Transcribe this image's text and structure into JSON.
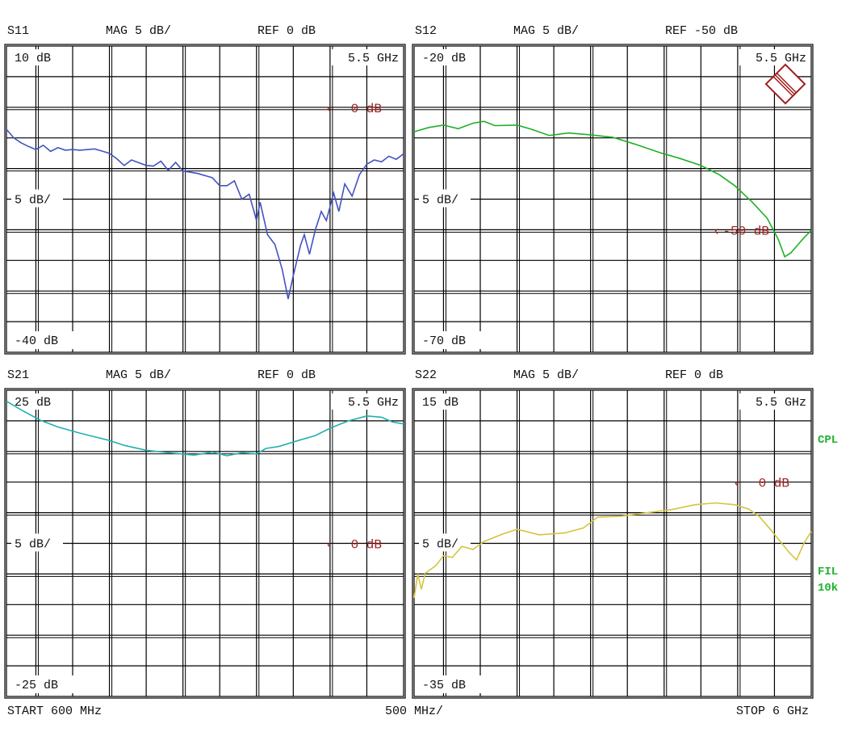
{
  "footer": {
    "start": "START  600 MHz",
    "per_div": "500 MHz/",
    "stop": "STOP 6 GHz"
  },
  "side_labels": {
    "coupling": "CPL",
    "filter": "FIL",
    "filter_bw": "10k"
  },
  "logo": {
    "text": "R&S",
    "color": "#a02020"
  },
  "marker_color": "#a02020",
  "chart_data": [
    {
      "type": "line",
      "title": "S11",
      "format": "MAG 5 dB/",
      "ref_label": "REF 0 dB",
      "top_label": "10 dB",
      "bottom_label": "-40 dB",
      "scale_label": "5 dB/",
      "freq_label": "5.5 GHz",
      "marker": {
        "label": "0 dB",
        "value": 0
      },
      "xlabel": "",
      "ylabel": "",
      "xlim_ghz": [
        0.6,
        6.0
      ],
      "ylim": [
        -40,
        10
      ],
      "grid": true,
      "color": "#4353c2",
      "points": [
        [
          0.6,
          -3.6
        ],
        [
          0.7,
          -5.0
        ],
        [
          0.8,
          -5.8
        ],
        [
          0.9,
          -6.4
        ],
        [
          1.0,
          -6.9
        ],
        [
          1.1,
          -6.2
        ],
        [
          1.2,
          -7.2
        ],
        [
          1.3,
          -6.6
        ],
        [
          1.4,
          -7.0
        ],
        [
          1.5,
          -6.9
        ],
        [
          1.6,
          -7.0
        ],
        [
          1.8,
          -6.8
        ],
        [
          2.0,
          -7.5
        ],
        [
          2.1,
          -8.4
        ],
        [
          2.2,
          -9.5
        ],
        [
          2.3,
          -8.6
        ],
        [
          2.5,
          -9.5
        ],
        [
          2.6,
          -9.6
        ],
        [
          2.7,
          -8.8
        ],
        [
          2.8,
          -10.3
        ],
        [
          2.9,
          -9.0
        ],
        [
          3.0,
          -10.4
        ],
        [
          3.2,
          -10.8
        ],
        [
          3.4,
          -11.5
        ],
        [
          3.5,
          -12.8
        ],
        [
          3.6,
          -12.8
        ],
        [
          3.7,
          -12.0
        ],
        [
          3.8,
          -15.0
        ],
        [
          3.9,
          -14.2
        ],
        [
          4.0,
          -18.5
        ],
        [
          4.05,
          -15.5
        ],
        [
          4.15,
          -20.8
        ],
        [
          4.25,
          -22.4
        ],
        [
          4.35,
          -26.5
        ],
        [
          4.43,
          -31.3
        ],
        [
          4.5,
          -27.5
        ],
        [
          4.6,
          -22.5
        ],
        [
          4.65,
          -20.8
        ],
        [
          4.72,
          -24.0
        ],
        [
          4.8,
          -20.0
        ],
        [
          4.88,
          -17.0
        ],
        [
          4.95,
          -18.5
        ],
        [
          5.05,
          -14.0
        ],
        [
          5.12,
          -17.0
        ],
        [
          5.2,
          -12.5
        ],
        [
          5.3,
          -14.5
        ],
        [
          5.4,
          -11.0
        ],
        [
          5.5,
          -9.3
        ],
        [
          5.6,
          -8.6
        ],
        [
          5.7,
          -8.9
        ],
        [
          5.8,
          -8.0
        ],
        [
          5.9,
          -8.5
        ],
        [
          6.0,
          -7.6
        ]
      ]
    },
    {
      "type": "line",
      "title": "S12",
      "format": "MAG 5 dB/",
      "ref_label": "REF -50 dB",
      "top_label": "-20 dB",
      "bottom_label": "-70 dB",
      "scale_label": "5 dB/",
      "freq_label": "5.5 GHz",
      "marker": {
        "label": "-50 dB",
        "value": -50
      },
      "xlabel": "",
      "ylabel": "",
      "xlim_ghz": [
        0.6,
        6.0
      ],
      "ylim": [
        -70,
        -20
      ],
      "grid": true,
      "color": "#20b028",
      "points": [
        [
          0.6,
          -34.0
        ],
        [
          0.8,
          -33.3
        ],
        [
          1.0,
          -32.9
        ],
        [
          1.2,
          -33.5
        ],
        [
          1.4,
          -32.6
        ],
        [
          1.55,
          -32.3
        ],
        [
          1.7,
          -33.0
        ],
        [
          2.0,
          -32.9
        ],
        [
          2.2,
          -33.6
        ],
        [
          2.44,
          -34.6
        ],
        [
          2.7,
          -34.2
        ],
        [
          3.0,
          -34.5
        ],
        [
          3.3,
          -34.9
        ],
        [
          3.6,
          -36.0
        ],
        [
          3.97,
          -37.5
        ],
        [
          4.2,
          -38.3
        ],
        [
          4.5,
          -39.5
        ],
        [
          4.75,
          -41.0
        ],
        [
          4.96,
          -42.8
        ],
        [
          5.2,
          -45.5
        ],
        [
          5.4,
          -48.1
        ],
        [
          5.55,
          -51.5
        ],
        [
          5.64,
          -54.4
        ],
        [
          5.72,
          -53.8
        ],
        [
          5.8,
          -52.7
        ],
        [
          5.9,
          -51.3
        ],
        [
          6.0,
          -50.1
        ]
      ]
    },
    {
      "type": "line",
      "title": "S21",
      "format": "MAG 5 dB/",
      "ref_label": "REF 0 dB",
      "top_label": "25 dB",
      "bottom_label": "-25 dB",
      "scale_label": "5 dB/",
      "freq_label": "5.5 GHz",
      "marker": {
        "label": "0 dB",
        "value": 0
      },
      "xlabel": "",
      "ylabel": "",
      "xlim_ghz": [
        0.6,
        6.0
      ],
      "ylim": [
        -25,
        25
      ],
      "grid": true,
      "color": "#22b0b0",
      "points": [
        [
          0.6,
          23.2
        ],
        [
          0.8,
          21.8
        ],
        [
          1.06,
          20.1
        ],
        [
          1.3,
          19.0
        ],
        [
          1.6,
          18.0
        ],
        [
          2.0,
          16.8
        ],
        [
          2.2,
          16.0
        ],
        [
          2.5,
          15.2
        ],
        [
          2.8,
          14.8
        ],
        [
          3.15,
          14.4
        ],
        [
          3.4,
          14.9
        ],
        [
          3.6,
          14.3
        ],
        [
          3.8,
          14.8
        ],
        [
          4.0,
          14.6
        ],
        [
          4.13,
          15.5
        ],
        [
          4.3,
          15.8
        ],
        [
          4.57,
          16.8
        ],
        [
          4.8,
          17.6
        ],
        [
          5.0,
          18.8
        ],
        [
          5.25,
          20.0
        ],
        [
          5.5,
          20.8
        ],
        [
          5.7,
          20.6
        ],
        [
          5.85,
          19.8
        ],
        [
          6.0,
          19.5
        ]
      ]
    },
    {
      "type": "line",
      "title": "S22",
      "format": "MAG 5 dB/",
      "ref_label": "REF 0 dB",
      "top_label": "15 dB",
      "bottom_label": "-35 dB",
      "scale_label": "5 dB/",
      "freq_label": "5.5 GHz",
      "marker": {
        "label": "0 dB",
        "value": 0
      },
      "xlabel": "",
      "ylabel": "",
      "xlim_ghz": [
        0.6,
        6.0
      ],
      "ylim": [
        -35,
        15
      ],
      "grid": true,
      "color": "#d4c440",
      "points": [
        [
          0.6,
          -18.9
        ],
        [
          0.65,
          -15.0
        ],
        [
          0.7,
          -17.5
        ],
        [
          0.75,
          -14.9
        ],
        [
          0.9,
          -13.6
        ],
        [
          1.0,
          -12.0
        ],
        [
          1.12,
          -12.3
        ],
        [
          1.25,
          -10.5
        ],
        [
          1.4,
          -11.0
        ],
        [
          1.55,
          -9.7
        ],
        [
          1.8,
          -8.5
        ],
        [
          2.0,
          -7.7
        ],
        [
          2.3,
          -8.6
        ],
        [
          2.65,
          -8.3
        ],
        [
          2.9,
          -7.5
        ],
        [
          3.1,
          -5.7
        ],
        [
          3.4,
          -5.6
        ],
        [
          3.77,
          -5.0
        ],
        [
          4.1,
          -4.5
        ],
        [
          4.42,
          -3.7
        ],
        [
          4.7,
          -3.4
        ],
        [
          4.96,
          -3.7
        ],
        [
          5.15,
          -4.4
        ],
        [
          5.3,
          -5.7
        ],
        [
          5.45,
          -7.8
        ],
        [
          5.58,
          -9.7
        ],
        [
          5.7,
          -11.5
        ],
        [
          5.8,
          -12.7
        ],
        [
          5.9,
          -10.0
        ],
        [
          6.0,
          -8.1
        ]
      ]
    }
  ]
}
